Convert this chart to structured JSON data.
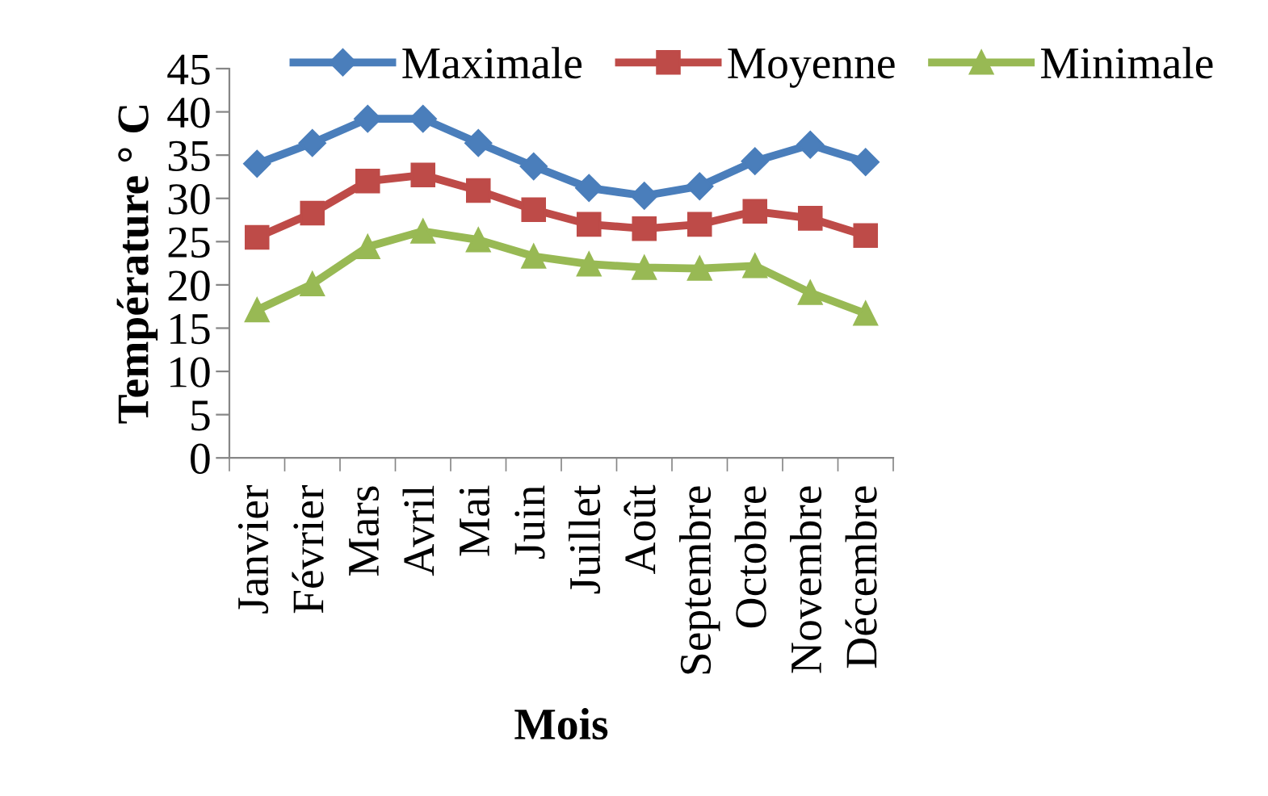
{
  "chart_data": {
    "type": "line",
    "xlabel": "Mois",
    "ylabel": "Température ° C",
    "categories": [
      "Janvier",
      "Février",
      "Mars",
      "Avril",
      "Mai",
      "Juin",
      "Juillet",
      "Août",
      "Septembre",
      "Octobre",
      "Novembre",
      "Décembre"
    ],
    "series": [
      {
        "name": "Maximale",
        "color": "#4a7ebb",
        "marker": "diamond",
        "values": [
          34.0,
          36.4,
          39.2,
          39.2,
          36.4,
          33.7,
          31.2,
          30.3,
          31.4,
          34.3,
          36.2,
          34.2
        ]
      },
      {
        "name": "Moyenne",
        "color": "#be4b48",
        "marker": "square",
        "values": [
          25.5,
          28.3,
          32.0,
          32.7,
          30.9,
          28.7,
          27.0,
          26.5,
          27.0,
          28.5,
          27.7,
          25.7
        ]
      },
      {
        "name": "Minimale",
        "color": "#98b954",
        "marker": "triangle",
        "values": [
          17.1,
          20.1,
          24.4,
          26.2,
          25.2,
          23.3,
          22.4,
          22.0,
          21.9,
          22.2,
          19.1,
          16.7
        ]
      }
    ],
    "ylim": [
      0,
      45
    ],
    "yticks": [
      0,
      5,
      10,
      15,
      20,
      25,
      30,
      35,
      40,
      45
    ],
    "grid": false,
    "legend": "top",
    "line_style": "solid"
  }
}
